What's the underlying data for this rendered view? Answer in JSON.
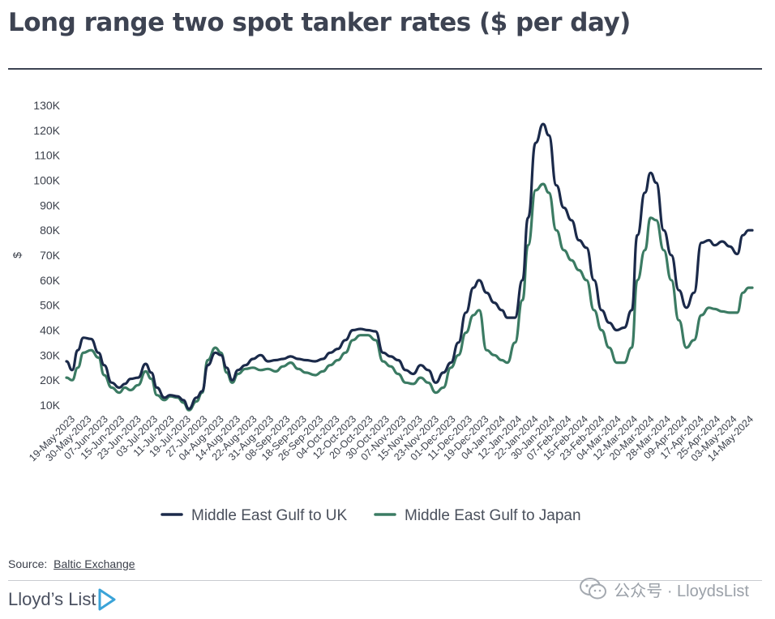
{
  "header": {
    "title": "Long range two spot tanker rates ($ per day)"
  },
  "footer": {
    "source_label": "Source:",
    "source_name": "Baltic Exchange",
    "brand": "Lloyd’s List",
    "watermark": "公众号 · LloydsList"
  },
  "colors": {
    "uk": "#1b2a4a",
    "japan": "#3b7b63",
    "axis_text": "#3a3f4a",
    "title": "#3d4352"
  },
  "chart_data": {
    "type": "line",
    "title": "Long range two spot tanker rates ($ per day)",
    "ylabel": "$",
    "xlabel": "",
    "ylim": [
      10000,
      130000
    ],
    "yticks": [
      10000,
      20000,
      30000,
      40000,
      50000,
      60000,
      70000,
      80000,
      90000,
      100000,
      110000,
      120000,
      130000
    ],
    "ytick_labels": [
      "10K",
      "20K",
      "30K",
      "40K",
      "50K",
      "60K",
      "70K",
      "80K",
      "90K",
      "100K",
      "110K",
      "120K",
      "130K"
    ],
    "x_range": [
      "2023-05-19",
      "2024-05-17"
    ],
    "x_tick_labels": [
      "19-May-2023",
      "30-May-2023",
      "07-Jun-2023",
      "15-Jun-2023",
      "23-Jun-2023",
      "03-Jul-2023",
      "11-Jul-2023",
      "19-Jul-2023",
      "27-Jul-2023",
      "04-Aug-2023",
      "14-Aug-2023",
      "22-Aug-2023",
      "31-Aug-2023",
      "08-Sep-2023",
      "18-Sep-2023",
      "26-Sep-2023",
      "04-Oct-2023",
      "12-Oct-2023",
      "20-Oct-2023",
      "30-Oct-2023",
      "07-Nov-2023",
      "15-Nov-2023",
      "23-Nov-2023",
      "01-Dec-2023",
      "11-Dec-2023",
      "19-Dec-2023",
      "04-Jan-2024",
      "12-Jan-2024",
      "22-Jan-2024",
      "30-Jan-2024",
      "07-Feb-2024",
      "15-Feb-2024",
      "23-Feb-2024",
      "04-Mar-2024",
      "12-Mar-2024",
      "20-Mar-2024",
      "28-Mar-2024",
      "09-Apr-2024",
      "17-Apr-2024",
      "25-Apr-2024",
      "03-May-2024",
      "14-May-2024"
    ],
    "grid": false,
    "legend_position": "bottom",
    "series": [
      {
        "name": "Middle East Gulf to UK",
        "points": [
          [
            "2023-05-19",
            27500
          ],
          [
            "2023-05-22",
            24000
          ],
          [
            "2023-05-25",
            32000
          ],
          [
            "2023-05-28",
            37000
          ],
          [
            "2023-06-01",
            36500
          ],
          [
            "2023-06-05",
            31000
          ],
          [
            "2023-06-08",
            26000
          ],
          [
            "2023-06-12",
            19000
          ],
          [
            "2023-06-16",
            17000
          ],
          [
            "2023-06-19",
            18500
          ],
          [
            "2023-06-22",
            20500
          ],
          [
            "2023-06-26",
            21000
          ],
          [
            "2023-06-30",
            26500
          ],
          [
            "2023-07-03",
            23000
          ],
          [
            "2023-07-06",
            17000
          ],
          [
            "2023-07-10",
            13000
          ],
          [
            "2023-07-13",
            14000
          ],
          [
            "2023-07-17",
            13500
          ],
          [
            "2023-07-20",
            12000
          ],
          [
            "2023-07-23",
            8500
          ],
          [
            "2023-07-27",
            13000
          ],
          [
            "2023-07-30",
            15500
          ],
          [
            "2023-08-02",
            26000
          ],
          [
            "2023-08-06",
            31000
          ],
          [
            "2023-08-09",
            30000
          ],
          [
            "2023-08-12",
            25000
          ],
          [
            "2023-08-15",
            20000
          ],
          [
            "2023-08-18",
            24000
          ],
          [
            "2023-08-22",
            26000
          ],
          [
            "2023-08-26",
            28500
          ],
          [
            "2023-08-30",
            30000
          ],
          [
            "2023-09-03",
            27500
          ],
          [
            "2023-09-07",
            28000
          ],
          [
            "2023-09-11",
            28500
          ],
          [
            "2023-09-15",
            29500
          ],
          [
            "2023-09-19",
            28500
          ],
          [
            "2023-09-23",
            28000
          ],
          [
            "2023-09-28",
            27500
          ],
          [
            "2023-10-02",
            28500
          ],
          [
            "2023-10-06",
            31000
          ],
          [
            "2023-10-10",
            32500
          ],
          [
            "2023-10-14",
            36000
          ],
          [
            "2023-10-18",
            40000
          ],
          [
            "2023-10-22",
            40500
          ],
          [
            "2023-10-26",
            40000
          ],
          [
            "2023-10-30",
            39500
          ],
          [
            "2023-11-03",
            31000
          ],
          [
            "2023-11-07",
            29500
          ],
          [
            "2023-11-11",
            28000
          ],
          [
            "2023-11-15",
            24000
          ],
          [
            "2023-11-19",
            22500
          ],
          [
            "2023-11-23",
            26000
          ],
          [
            "2023-11-27",
            24000
          ],
          [
            "2023-12-01",
            19000
          ],
          [
            "2023-12-05",
            23000
          ],
          [
            "2023-12-09",
            27000
          ],
          [
            "2023-12-13",
            35000
          ],
          [
            "2023-12-17",
            47000
          ],
          [
            "2023-12-21",
            57000
          ],
          [
            "2023-12-24",
            60000
          ],
          [
            "2023-12-28",
            55000
          ],
          [
            "2024-01-01",
            51000
          ],
          [
            "2024-01-05",
            48000
          ],
          [
            "2024-01-08",
            45000
          ],
          [
            "2024-01-12",
            45000
          ],
          [
            "2024-01-16",
            60000
          ],
          [
            "2024-01-19",
            85000
          ],
          [
            "2024-01-23",
            115000
          ],
          [
            "2024-01-27",
            122500
          ],
          [
            "2024-01-30",
            118000
          ],
          [
            "2024-02-03",
            98000
          ],
          [
            "2024-02-07",
            89000
          ],
          [
            "2024-02-11",
            84000
          ],
          [
            "2024-02-15",
            76000
          ],
          [
            "2024-02-19",
            73000
          ],
          [
            "2024-02-23",
            60000
          ],
          [
            "2024-02-27",
            48000
          ],
          [
            "2024-03-02",
            43000
          ],
          [
            "2024-03-06",
            40000
          ],
          [
            "2024-03-10",
            41000
          ],
          [
            "2024-03-14",
            48000
          ],
          [
            "2024-03-17",
            78000
          ],
          [
            "2024-03-21",
            95000
          ],
          [
            "2024-03-24",
            103000
          ],
          [
            "2024-03-27",
            99000
          ],
          [
            "2024-03-31",
            80000
          ],
          [
            "2024-04-04",
            70000
          ],
          [
            "2024-04-08",
            56000
          ],
          [
            "2024-04-12",
            49000
          ],
          [
            "2024-04-16",
            55000
          ],
          [
            "2024-04-20",
            75000
          ],
          [
            "2024-04-24",
            76000
          ],
          [
            "2024-04-27",
            74000
          ],
          [
            "2024-05-01",
            75500
          ],
          [
            "2024-05-05",
            73500
          ],
          [
            "2024-05-09",
            70500
          ],
          [
            "2024-05-12",
            78000
          ],
          [
            "2024-05-15",
            80000
          ],
          [
            "2024-05-17",
            80000
          ]
        ]
      },
      {
        "name": "Middle East Gulf to Japan",
        "points": [
          [
            "2023-05-19",
            21000
          ],
          [
            "2023-05-22",
            20000
          ],
          [
            "2023-05-25",
            25000
          ],
          [
            "2023-05-28",
            31000
          ],
          [
            "2023-06-01",
            32000
          ],
          [
            "2023-06-05",
            29000
          ],
          [
            "2023-06-08",
            22000
          ],
          [
            "2023-06-12",
            17000
          ],
          [
            "2023-06-16",
            15000
          ],
          [
            "2023-06-19",
            17000
          ],
          [
            "2023-06-22",
            16000
          ],
          [
            "2023-06-26",
            18000
          ],
          [
            "2023-06-30",
            23500
          ],
          [
            "2023-07-03",
            20500
          ],
          [
            "2023-07-06",
            14000
          ],
          [
            "2023-07-10",
            12000
          ],
          [
            "2023-07-13",
            13500
          ],
          [
            "2023-07-17",
            13000
          ],
          [
            "2023-07-20",
            11000
          ],
          [
            "2023-07-23",
            8000
          ],
          [
            "2023-07-27",
            11500
          ],
          [
            "2023-07-30",
            15000
          ],
          [
            "2023-08-02",
            28000
          ],
          [
            "2023-08-06",
            33000
          ],
          [
            "2023-08-09",
            31000
          ],
          [
            "2023-08-12",
            23000
          ],
          [
            "2023-08-15",
            19000
          ],
          [
            "2023-08-18",
            22500
          ],
          [
            "2023-08-22",
            24500
          ],
          [
            "2023-08-26",
            25000
          ],
          [
            "2023-08-30",
            24000
          ],
          [
            "2023-09-03",
            24500
          ],
          [
            "2023-09-07",
            23500
          ],
          [
            "2023-09-11",
            25500
          ],
          [
            "2023-09-15",
            27000
          ],
          [
            "2023-09-19",
            24500
          ],
          [
            "2023-09-23",
            23000
          ],
          [
            "2023-09-28",
            22000
          ],
          [
            "2023-10-02",
            23500
          ],
          [
            "2023-10-06",
            26000
          ],
          [
            "2023-10-10",
            28000
          ],
          [
            "2023-10-14",
            31000
          ],
          [
            "2023-10-18",
            36000
          ],
          [
            "2023-10-22",
            38000
          ],
          [
            "2023-10-26",
            38000
          ],
          [
            "2023-10-30",
            36000
          ],
          [
            "2023-11-03",
            27500
          ],
          [
            "2023-11-07",
            25500
          ],
          [
            "2023-11-11",
            22500
          ],
          [
            "2023-11-15",
            19000
          ],
          [
            "2023-11-19",
            18500
          ],
          [
            "2023-11-23",
            21000
          ],
          [
            "2023-11-27",
            19000
          ],
          [
            "2023-12-01",
            15000
          ],
          [
            "2023-12-05",
            17000
          ],
          [
            "2023-12-09",
            25000
          ],
          [
            "2023-12-13",
            30000
          ],
          [
            "2023-12-17",
            39000
          ],
          [
            "2023-12-21",
            46000
          ],
          [
            "2023-12-24",
            48000
          ],
          [
            "2023-12-28",
            32000
          ],
          [
            "2024-01-01",
            30000
          ],
          [
            "2024-01-05",
            28000
          ],
          [
            "2024-01-08",
            27000
          ],
          [
            "2024-01-12",
            35000
          ],
          [
            "2024-01-16",
            52000
          ],
          [
            "2024-01-19",
            74000
          ],
          [
            "2024-01-23",
            96000
          ],
          [
            "2024-01-27",
            98500
          ],
          [
            "2024-01-30",
            95000
          ],
          [
            "2024-02-03",
            80000
          ],
          [
            "2024-02-07",
            72000
          ],
          [
            "2024-02-11",
            68000
          ],
          [
            "2024-02-15",
            64000
          ],
          [
            "2024-02-19",
            60000
          ],
          [
            "2024-02-23",
            48000
          ],
          [
            "2024-02-27",
            40000
          ],
          [
            "2024-03-02",
            33000
          ],
          [
            "2024-03-06",
            27000
          ],
          [
            "2024-03-10",
            27000
          ],
          [
            "2024-03-14",
            33000
          ],
          [
            "2024-03-17",
            60000
          ],
          [
            "2024-03-21",
            72000
          ],
          [
            "2024-03-24",
            85000
          ],
          [
            "2024-03-27",
            84000
          ],
          [
            "2024-03-31",
            72000
          ],
          [
            "2024-04-04",
            60000
          ],
          [
            "2024-04-08",
            44000
          ],
          [
            "2024-04-12",
            33000
          ],
          [
            "2024-04-16",
            36000
          ],
          [
            "2024-04-20",
            46000
          ],
          [
            "2024-04-24",
            49000
          ],
          [
            "2024-04-27",
            48500
          ],
          [
            "2024-05-01",
            47500
          ],
          [
            "2024-05-05",
            47000
          ],
          [
            "2024-05-09",
            47000
          ],
          [
            "2024-05-12",
            55000
          ],
          [
            "2024-05-15",
            57000
          ],
          [
            "2024-05-17",
            57000
          ]
        ]
      }
    ]
  }
}
